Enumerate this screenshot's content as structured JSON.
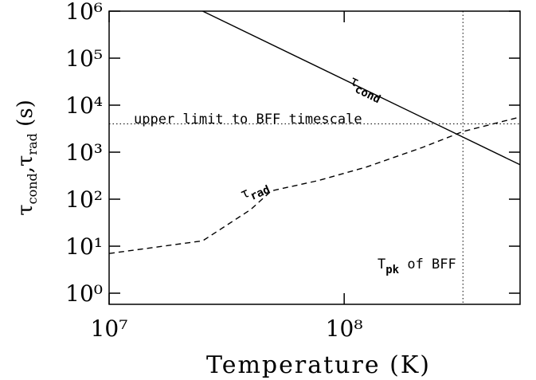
{
  "chart_data": {
    "type": "line",
    "xlabel": "Temperature (K)",
    "ylabel": [
      {
        "text": "τ",
        "sub": "cond"
      },
      {
        "text": ",τ",
        "sub": "rad"
      },
      {
        "text": " (s)"
      }
    ],
    "xscale": "log",
    "yscale": "log",
    "xlim": [
      10000000,
      560000000
    ],
    "ylim": [
      0.58,
      1000000
    ],
    "xticks": [
      {
        "value": 10000000,
        "label": "10⁷"
      },
      {
        "value": 100000000,
        "label": "10⁸"
      }
    ],
    "yticks": [
      {
        "value": 1,
        "label": "10⁰"
      },
      {
        "value": 10,
        "label": "10¹"
      },
      {
        "value": 100,
        "label": "10²"
      },
      {
        "value": 1000,
        "label": "10³"
      },
      {
        "value": 10000,
        "label": "10⁴"
      },
      {
        "value": 100000,
        "label": "10⁵"
      },
      {
        "value": 1000000,
        "label": "10⁶"
      }
    ],
    "series": [
      {
        "style": "solid",
        "color": "#000000",
        "x": [
          25000000,
          560000000
        ],
        "values": [
          1000000,
          540
        ]
      },
      {
        "style": "dashed",
        "color": "#000000",
        "x": [
          10000000,
          25000000,
          40000000,
          49000000,
          78000000,
          124000000,
          215000000,
          320000000,
          560000000
        ],
        "values": [
          7,
          13,
          60,
          150,
          250,
          480,
          1260,
          2750,
          5600
        ]
      }
    ],
    "hlines": [
      {
        "value": 4000,
        "style": "dotted"
      }
    ],
    "vlines": [
      {
        "value": 320000000,
        "style": "dotted"
      }
    ],
    "annotations": [
      {
        "text": "τ",
        "sub": "cond"
      },
      {
        "text": "upper limit to BFF timescale"
      },
      {
        "text": "τ",
        "sub": "rad"
      },
      {
        "text": "T",
        "sub": "pk",
        "tail": " of BFF"
      }
    ]
  }
}
